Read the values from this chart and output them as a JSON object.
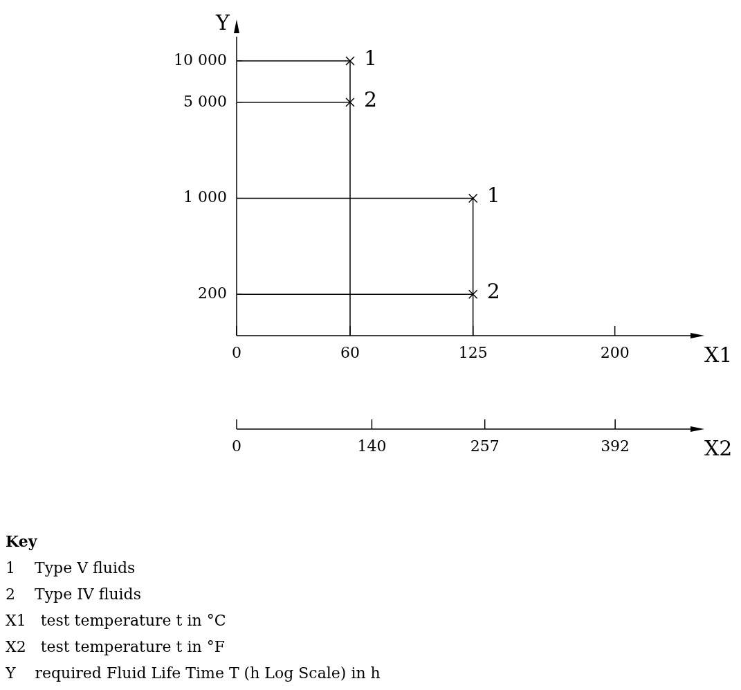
{
  "chart_data": {
    "type": "scatter",
    "xlabel": "X1",
    "ylabel": "Y",
    "x2label": "X2",
    "log": "y",
    "xlim": [
      0,
      240
    ],
    "xticks": [
      0,
      60,
      125,
      200
    ],
    "x2lim": [
      0,
      470
    ],
    "x2ticks": [
      0,
      140,
      257,
      392
    ],
    "ylim": [
      100,
      15000
    ],
    "yticks": [
      {
        "value": 200,
        "label": "200"
      },
      {
        "value": 1000,
        "label": "1 000"
      },
      {
        "value": 5000,
        "label": "5 000"
      },
      {
        "value": 10000,
        "label": "10 000"
      }
    ],
    "marker": "cross",
    "legend": false,
    "series": [
      {
        "type": "line",
        "color": "#000000",
        "marker": "none",
        "x": [
          0,
          60,
          60
        ],
        "values": [
          10000,
          10000,
          100
        ]
      },
      {
        "type": "line",
        "color": "#000000",
        "marker": "none",
        "x": [
          0,
          60
        ],
        "values": [
          5000,
          5000
        ]
      },
      {
        "type": "line",
        "color": "#000000",
        "marker": "none",
        "x": [
          0,
          125,
          125
        ],
        "values": [
          1000,
          1000,
          100
        ]
      },
      {
        "type": "line",
        "color": "#000000",
        "marker": "none",
        "x": [
          0,
          125
        ],
        "values": [
          200,
          200
        ]
      },
      {
        "name": "1",
        "color": "#000000",
        "x": [
          60,
          125
        ],
        "values": [
          10000,
          1000
        ]
      },
      {
        "name": "2",
        "color": "#000000",
        "x": [
          60,
          125
        ],
        "values": [
          5000,
          200
        ]
      }
    ],
    "annotations": [
      "Key",
      "1    Type V fluids",
      "2    Type IV fluids",
      "X1   test temperature t in °C",
      "X2   test temperature t in °F",
      "Y    required Fluid Life Time T (h Log Scale) in h"
    ]
  }
}
